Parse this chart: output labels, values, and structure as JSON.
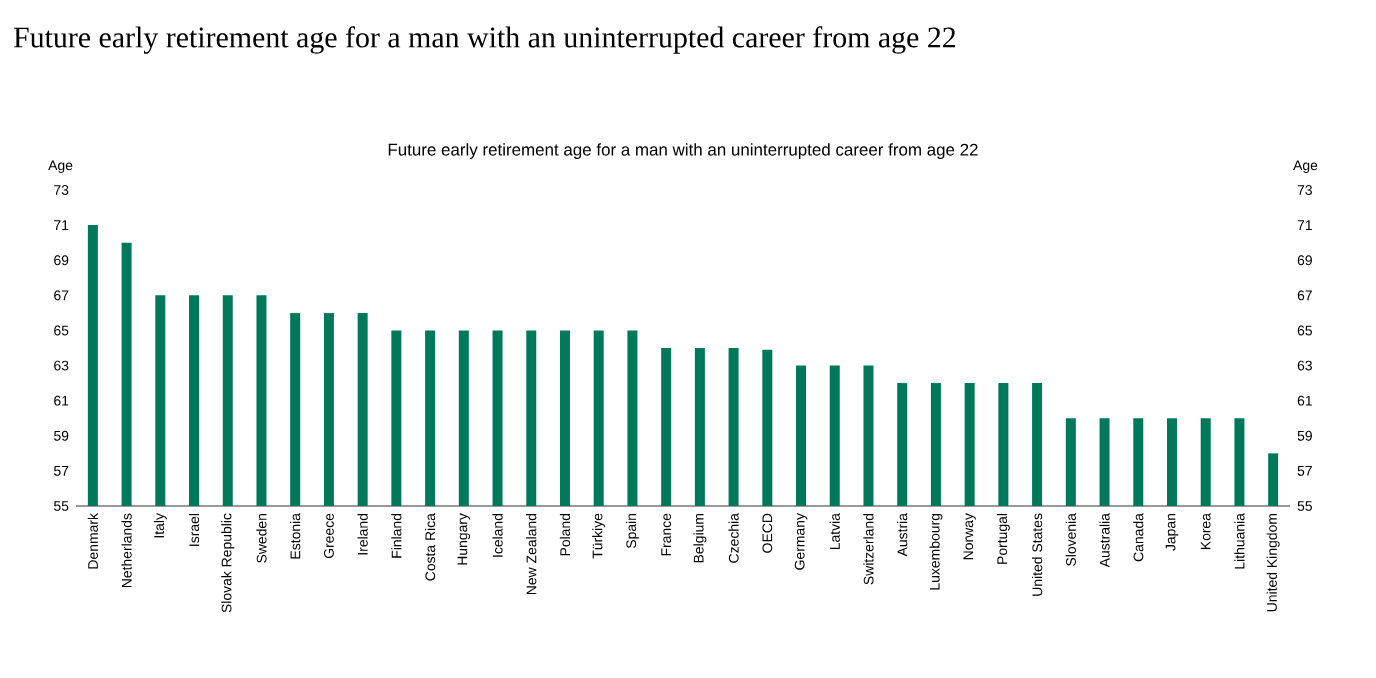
{
  "chart_data": {
    "type": "bar",
    "title": "Future early retirement age for a man with an uninterrupted career from age 22",
    "subtitle": "Future early retirement age for a man with an uninterrupted career from age 22",
    "ylabel": "Age",
    "y2label": "Age",
    "categories": [
      "Denmark",
      "Netherlands",
      "Italy",
      "Israel",
      "Slovak Republic",
      "Sweden",
      "Estonia",
      "Greece",
      "Ireland",
      "Finland",
      "Costa Rica",
      "Hungary",
      "Iceland",
      "New Zealand",
      "Poland",
      "Türkiye",
      "Spain",
      "France",
      "Belgium",
      "Czechia",
      "OECD",
      "Germany",
      "Latvia",
      "Switzerland",
      "Austria",
      "Luxembourg",
      "Norway",
      "Portugal",
      "United States",
      "Slovenia",
      "Australia",
      "Canada",
      "Japan",
      "Korea",
      "Lithuania",
      "United Kingdom"
    ],
    "values": [
      71,
      70,
      67,
      67,
      67,
      67,
      66,
      66,
      66,
      65,
      65,
      65,
      65,
      65,
      65,
      65,
      65,
      64,
      64,
      64,
      63.9,
      63,
      63,
      63,
      62,
      62,
      62,
      62,
      62,
      60,
      60,
      60,
      60,
      60,
      60,
      58
    ],
    "color": "#00785a",
    "ylim": [
      55,
      73
    ],
    "yticks": [
      55,
      57,
      59,
      61,
      63,
      65,
      67,
      69,
      71,
      73
    ],
    "y2lim": [
      55,
      73
    ],
    "y2ticks": [
      55,
      57,
      59,
      61,
      63,
      65,
      67,
      69,
      71,
      73
    ]
  }
}
